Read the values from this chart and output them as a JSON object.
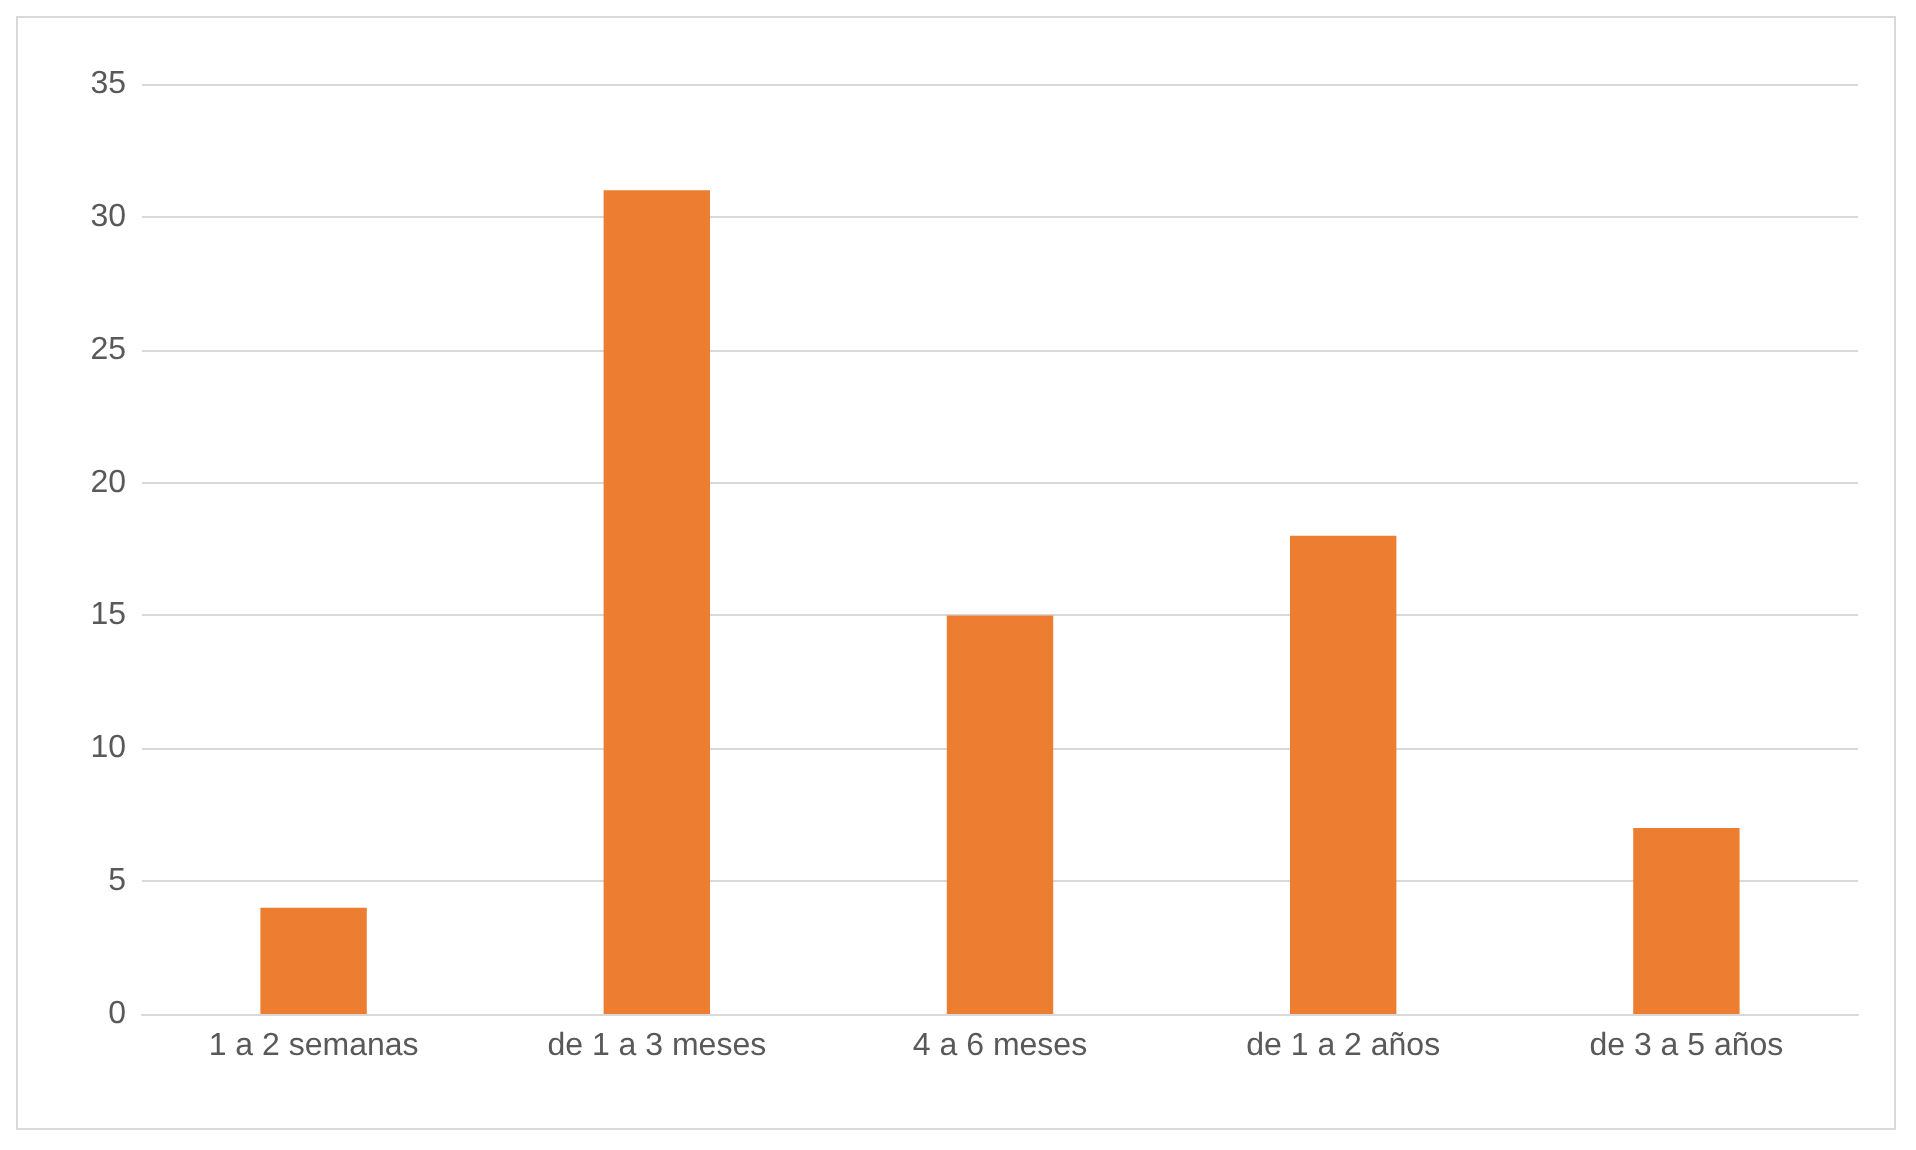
{
  "chart_data": {
    "type": "bar",
    "categories": [
      "1 a 2 semanas",
      "de 1 a 3 meses",
      "4 a 6 meses",
      "de 1 a 2 años",
      "de 3 a 5 años"
    ],
    "values": [
      4,
      31,
      15,
      18,
      7
    ],
    "color": "#ed7d31",
    "ylim": [
      0,
      35
    ],
    "yticks": [
      0,
      5,
      10,
      15,
      20,
      25,
      30,
      35
    ],
    "grid": "y"
  }
}
